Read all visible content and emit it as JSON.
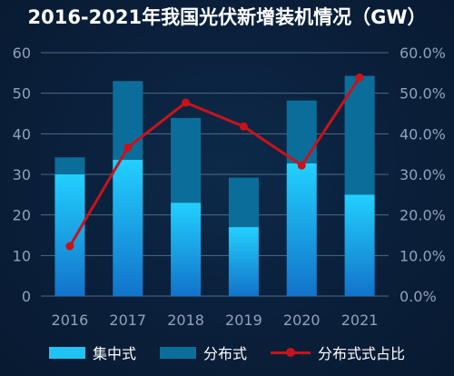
{
  "chart_data": {
    "type": "bar",
    "title": "2016-2021年我国光伏新增装机情况（GW）",
    "categories": [
      "2016",
      "2017",
      "2018",
      "2019",
      "2020",
      "2021"
    ],
    "series": [
      {
        "name": "集中式",
        "kind": "stacked-bar",
        "values": [
          30,
          33.6,
          23,
          17,
          32.7,
          25
        ],
        "color": "#1fc4f5"
      },
      {
        "name": "分布式",
        "kind": "stacked-bar",
        "values": [
          4.2,
          19.4,
          20.9,
          12.2,
          15.5,
          29.3
        ],
        "color": "#0b6e9a"
      },
      {
        "name": "分布式式占比",
        "kind": "line",
        "axis": "right",
        "values": [
          12.3,
          36.6,
          47.7,
          41.8,
          32.2,
          53.9
        ],
        "color": "#c8131a"
      }
    ],
    "y_left": {
      "min": 0,
      "max": 60,
      "ticks": [
        "0",
        "10",
        "20",
        "30",
        "40",
        "50",
        "60"
      ]
    },
    "y_right": {
      "min": 0,
      "max": 60,
      "ticks": [
        "0.0%",
        "10.0%",
        "20.0%",
        "30.0%",
        "40.0%",
        "50.0%",
        "60.0%"
      ]
    },
    "grid": true,
    "legend_position": "bottom"
  },
  "legend": {
    "central": "集中式",
    "distributed": "分布式",
    "share": "分布式式占比"
  }
}
